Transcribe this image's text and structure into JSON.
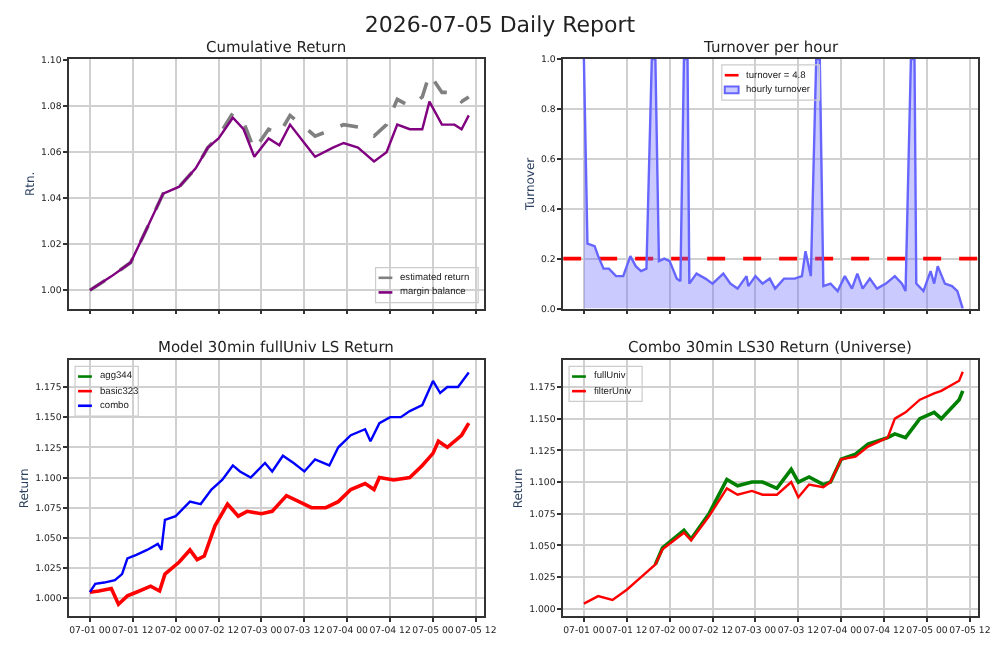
{
  "chart_data": [
    {
      "type": "other",
      "title": "2026-07-05 Daily Report"
    },
    {
      "type": "line",
      "title": "Cumulative Return",
      "ylabel": "Rtn.",
      "xlim": [
        "2026-06-30T18:12",
        "2026-07-05T14:18"
      ],
      "ylim": [
        0.992,
        1.1005
      ],
      "xticks": [
        {
          "value": "2026-07-01T00:00",
          "label": null
        },
        {
          "value": "2026-07-01T12:00",
          "label": null
        },
        {
          "value": "2026-07-02T00:00",
          "label": null
        },
        {
          "value": "2026-07-02T12:00",
          "label": null
        },
        {
          "value": "2026-07-03T00:00",
          "label": null
        },
        {
          "value": "2026-07-03T12:00",
          "label": null
        },
        {
          "value": "2026-07-04T00:00",
          "label": null
        },
        {
          "value": "2026-07-04T12:00",
          "label": null
        },
        {
          "value": "2026-07-05T00:00",
          "label": null
        },
        {
          "value": "2026-07-05T12:00",
          "label": null
        }
      ],
      "yticks": [
        {
          "value": 1.0,
          "label": "1.00"
        },
        1.02,
        1.04,
        1.06,
        1.08,
        {
          "value": 1.1,
          "label": "1.10"
        }
      ],
      "tick_labels": "y",
      "grid": true,
      "legend": "bottom right",
      "marker": "none",
      "series": [
        {
          "name": "estimated return",
          "color": "#808080",
          "line_style": "dashed",
          "x": [
            "2026-07-01T00:00",
            "2026-07-01T06:00",
            "2026-07-01T11:24",
            "2026-07-01T16:00",
            "2026-07-01T20:30",
            "2026-07-02T01:00",
            "2026-07-02T05:36",
            "2026-07-02T09:00",
            "2026-07-02T12:00",
            "2026-07-02T16:00",
            "2026-07-02T19:00",
            "2026-07-02T22:00",
            "2026-07-03T02:00",
            "2026-07-03T05:00",
            "2026-07-03T08:00",
            "2026-07-03T12:00",
            "2026-07-03T15:00",
            "2026-07-03T20:00",
            "2026-07-03T23:00",
            "2026-07-04T03:00",
            "2026-07-04T07:30",
            "2026-07-04T11:00",
            "2026-07-04T14:00",
            "2026-07-04T17:30",
            "2026-07-04T21:00",
            "2026-07-04T23:00",
            "2026-07-05T02:30",
            "2026-07-05T06:00",
            "2026-07-05T08:00",
            "2026-07-05T10:00"
          ],
          "values": [
            1.0,
            1.006,
            1.012,
            1.027,
            1.042,
            1.045,
            1.053,
            1.062,
            1.067,
            1.077,
            1.073,
            1.061,
            1.07,
            1.068,
            1.076,
            1.071,
            1.067,
            1.07,
            1.072,
            1.071,
            1.067,
            1.072,
            1.083,
            1.08,
            1.084,
            1.094,
            1.086,
            1.086,
            1.082,
            1.084
          ]
        },
        {
          "name": "margin balance",
          "color": "#800080",
          "line_style": "solid",
          "x": [
            "2026-07-01T00:00",
            "2026-07-01T06:00",
            "2026-07-01T11:24",
            "2026-07-01T16:00",
            "2026-07-01T20:30",
            "2026-07-02T01:00",
            "2026-07-02T05:36",
            "2026-07-02T09:00",
            "2026-07-02T12:00",
            "2026-07-02T16:00",
            "2026-07-02T19:00",
            "2026-07-02T22:00",
            "2026-07-03T02:00",
            "2026-07-03T05:00",
            "2026-07-03T08:00",
            "2026-07-03T12:00",
            "2026-07-03T15:00",
            "2026-07-03T20:00",
            "2026-07-03T23:00",
            "2026-07-04T03:00",
            "2026-07-04T07:30",
            "2026-07-04T11:00",
            "2026-07-04T14:00",
            "2026-07-04T17:30",
            "2026-07-04T21:00",
            "2026-07-04T23:00",
            "2026-07-05T02:30",
            "2026-07-05T06:00",
            "2026-07-05T08:00",
            "2026-07-05T10:00"
          ],
          "values": [
            1.0,
            1.006,
            1.012,
            1.027,
            1.042,
            1.045,
            1.053,
            1.062,
            1.066,
            1.075,
            1.07,
            1.058,
            1.066,
            1.063,
            1.072,
            1.064,
            1.058,
            1.062,
            1.064,
            1.062,
            1.056,
            1.06,
            1.072,
            1.07,
            1.07,
            1.082,
            1.072,
            1.072,
            1.07,
            1.076
          ]
        }
      ]
    },
    {
      "type": "area",
      "title": "Turnover per hour",
      "ylabel": "Turnover",
      "xlim": [
        "2026-06-30T18:12",
        "2026-07-05T14:18"
      ],
      "ylim": [
        0,
        1.0
      ],
      "xticks": [
        {
          "value": "2026-07-01T00:00",
          "label": null
        },
        {
          "value": "2026-07-01T12:00",
          "label": null
        },
        {
          "value": "2026-07-02T00:00",
          "label": null
        },
        {
          "value": "2026-07-02T12:00",
          "label": null
        },
        {
          "value": "2026-07-03T00:00",
          "label": null
        },
        {
          "value": "2026-07-03T12:00",
          "label": null
        },
        {
          "value": "2026-07-04T00:00",
          "label": null
        },
        {
          "value": "2026-07-04T12:00",
          "label": null
        },
        {
          "value": "2026-07-05T00:00",
          "label": null
        },
        {
          "value": "2026-07-05T12:00",
          "label": null
        }
      ],
      "yticks": [
        {
          "value": 0,
          "label": "0.0"
        },
        0.2,
        0.4,
        0.6,
        0.8,
        {
          "value": 1.0,
          "label": "1.0"
        }
      ],
      "tick_labels": "y",
      "grid": true,
      "legend": "top",
      "series": [
        {
          "name": "turnover = 4.8",
          "type": "line",
          "color": "#ff0000",
          "line_style": "dashed",
          "x": [
            "2026-06-30T18:12",
            "2026-07-05T14:18"
          ],
          "values": [
            0.2,
            0.2
          ]
        },
        {
          "name": "hourly turnover",
          "color": "#6666ff",
          "x": [
            "2026-07-01T00:00",
            "2026-07-01T01:00",
            "2026-07-01T03:00",
            "2026-07-01T04:00",
            "2026-07-01T05:30",
            "2026-07-01T07:00",
            "2026-07-01T09:00",
            "2026-07-01T11:00",
            "2026-07-01T13:00",
            "2026-07-01T14:30",
            "2026-07-01T16:00",
            "2026-07-01T17:30",
            "2026-07-01T19:00",
            "2026-07-01T20:00",
            "2026-07-01T21:00",
            "2026-07-01T22:30",
            "2026-07-02T00:00",
            "2026-07-02T02:00",
            "2026-07-02T03:00",
            "2026-07-02T04:00",
            "2026-07-02T05:00",
            "2026-07-02T05:30",
            "2026-07-02T07:30",
            "2026-07-02T10:00",
            "2026-07-02T12:00",
            "2026-07-02T15:00",
            "2026-07-02T17:00",
            "2026-07-02T19:00",
            "2026-07-02T21:30",
            "2026-07-02T22:00",
            "2026-07-03T00:00",
            "2026-07-03T02:00",
            "2026-07-03T04:00",
            "2026-07-03T05:30",
            "2026-07-03T08:00",
            "2026-07-03T11:00",
            "2026-07-03T13:00",
            "2026-07-03T14:00",
            "2026-07-03T15:30",
            "2026-07-03T17:00",
            "2026-07-03T18:00",
            "2026-07-03T19:00",
            "2026-07-03T21:00",
            "2026-07-03T23:00",
            "2026-07-04T01:00",
            "2026-07-04T03:00",
            "2026-07-04T04:30",
            "2026-07-04T06:00",
            "2026-07-04T08:00",
            "2026-07-04T10:00",
            "2026-07-04T12:30",
            "2026-07-04T15:00",
            "2026-07-04T17:00",
            "2026-07-04T18:00",
            "2026-07-04T19:30",
            "2026-07-04T20:30",
            "2026-07-04T21:00",
            "2026-07-04T23:00",
            "2026-07-05T01:00",
            "2026-07-05T02:00",
            "2026-07-05T03:00",
            "2026-07-05T05:00",
            "2026-07-05T07:00",
            "2026-07-05T08:30",
            "2026-07-05T10:00"
          ],
          "values": [
            1.0,
            0.26,
            0.25,
            0.21,
            0.16,
            0.16,
            0.13,
            0.13,
            0.21,
            0.17,
            0.15,
            0.16,
            1.0,
            1.0,
            0.19,
            0.2,
            0.19,
            0.12,
            0.11,
            1.0,
            1.0,
            0.1,
            0.14,
            0.12,
            0.1,
            0.14,
            0.1,
            0.08,
            0.13,
            0.09,
            0.13,
            0.1,
            0.12,
            0.08,
            0.12,
            0.12,
            0.13,
            0.23,
            0.13,
            1.0,
            1.0,
            0.09,
            0.1,
            0.07,
            0.13,
            0.08,
            0.14,
            0.08,
            0.12,
            0.08,
            0.1,
            0.13,
            0.1,
            0.07,
            1.0,
            1.0,
            0.1,
            0.07,
            0.15,
            0.1,
            0.17,
            0.1,
            0.09,
            0.07,
            0.0
          ]
        }
      ]
    },
    {
      "type": "line",
      "title": "Model 30min fullUniv LS Return",
      "ylabel": "Return",
      "xlim": [
        "2026-06-30T18:12",
        "2026-07-05T14:18"
      ],
      "ylim": [
        0.985,
        1.197
      ],
      "xticks": [
        {
          "value": "2026-07-01T00:00",
          "label": "07-01 00"
        },
        {
          "value": "2026-07-01T12:00",
          "label": "07-01 12"
        },
        {
          "value": "2026-07-02T00:00",
          "label": "07-02 00"
        },
        {
          "value": "2026-07-02T12:00",
          "label": "07-02 12"
        },
        {
          "value": "2026-07-03T00:00",
          "label": "07-03 00"
        },
        {
          "value": "2026-07-03T12:00",
          "label": "07-03 12"
        },
        {
          "value": "2026-07-04T00:00",
          "label": "07-04 00"
        },
        {
          "value": "2026-07-04T12:00",
          "label": "07-04 12"
        },
        {
          "value": "2026-07-05T00:00",
          "label": "07-05 00"
        },
        {
          "value": "2026-07-05T12:00",
          "label": "07-05 12"
        }
      ],
      "yticks": [
        {
          "value": 1.0,
          "label": "1.000"
        },
        1.025,
        {
          "value": 1.05,
          "label": "1.050"
        },
        1.075,
        {
          "value": 1.1,
          "label": "1.100"
        },
        1.125,
        {
          "value": 1.15,
          "label": "1.150"
        },
        1.175
      ],
      "grid": true,
      "legend": "top left",
      "marker": "none",
      "series": [
        {
          "name": "agg344",
          "color": "#008000"
        },
        {
          "name": "basic323",
          "color": "#ff0000",
          "x": [
            "2026-07-01T00:00",
            "2026-07-01T02:30",
            "2026-07-01T06:00",
            "2026-07-01T08:00",
            "2026-07-01T10:30",
            "2026-07-01T13:00",
            "2026-07-01T17:00",
            "2026-07-01T19:30",
            "2026-07-01T21:00",
            "2026-07-02T01:00",
            "2026-07-02T04:00",
            "2026-07-02T06:00",
            "2026-07-02T08:00",
            "2026-07-02T11:00",
            "2026-07-02T14:30",
            "2026-07-02T17:30",
            "2026-07-02T20:00",
            "2026-07-03T00:00",
            "2026-07-03T03:00",
            "2026-07-03T07:00",
            "2026-07-03T10:30",
            "2026-07-03T14:00",
            "2026-07-03T18:00",
            "2026-07-03T21:30",
            "2026-07-04T01:00",
            "2026-07-04T05:00",
            "2026-07-04T07:30",
            "2026-07-04T09:00",
            "2026-07-04T13:00",
            "2026-07-04T17:30",
            "2026-07-04T21:00",
            "2026-07-05T00:00",
            "2026-07-05T01:30",
            "2026-07-05T04:00",
            "2026-07-05T08:00",
            "2026-07-05T10:00"
          ],
          "values": [
            1.005,
            1.006,
            1.008,
            0.995,
            1.002,
            1.005,
            1.01,
            1.006,
            1.02,
            1.03,
            1.04,
            1.032,
            1.035,
            1.06,
            1.078,
            1.068,
            1.072,
            1.07,
            1.072,
            1.085,
            1.08,
            1.075,
            1.075,
            1.08,
            1.09,
            1.095,
            1.09,
            1.1,
            1.098,
            1.1,
            1.11,
            1.12,
            1.13,
            1.125,
            1.135,
            1.145
          ]
        },
        {
          "name": "combo",
          "color": "#0000ff",
          "x": [
            "2026-07-01T00:00",
            "2026-07-01T01:30",
            "2026-07-01T04:00",
            "2026-07-01T07:00",
            "2026-07-01T09:00",
            "2026-07-01T10:30",
            "2026-07-01T13:00",
            "2026-07-01T16:00",
            "2026-07-01T19:00",
            "2026-07-01T20:00",
            "2026-07-01T21:00",
            "2026-07-02T00:00",
            "2026-07-02T04:00",
            "2026-07-02T07:00",
            "2026-07-02T10:00",
            "2026-07-02T13:00",
            "2026-07-02T16:00",
            "2026-07-02T18:00",
            "2026-07-02T21:00",
            "2026-07-03T01:00",
            "2026-07-03T03:00",
            "2026-07-03T06:00",
            "2026-07-03T09:00",
            "2026-07-03T12:00",
            "2026-07-03T15:00",
            "2026-07-03T19:00",
            "2026-07-03T21:30",
            "2026-07-04T01:00",
            "2026-07-04T05:00",
            "2026-07-04T06:30",
            "2026-07-04T09:00",
            "2026-07-04T12:00",
            "2026-07-04T15:00",
            "2026-07-04T17:30",
            "2026-07-04T21:00",
            "2026-07-05T00:00",
            "2026-07-05T02:00",
            "2026-07-05T04:00",
            "2026-07-05T07:00",
            "2026-07-05T10:00"
          ],
          "values": [
            1.005,
            1.012,
            1.013,
            1.015,
            1.02,
            1.033,
            1.036,
            1.04,
            1.045,
            1.04,
            1.065,
            1.068,
            1.08,
            1.078,
            1.09,
            1.098,
            1.11,
            1.105,
            1.1,
            1.112,
            1.105,
            1.118,
            1.112,
            1.105,
            1.115,
            1.11,
            1.125,
            1.135,
            1.14,
            1.13,
            1.145,
            1.15,
            1.15,
            1.155,
            1.16,
            1.18,
            1.17,
            1.175,
            1.175,
            1.187
          ]
        }
      ]
    },
    {
      "type": "line",
      "title": "Combo 30min LS30 Return (Universe)",
      "ylabel": "Return",
      "xlim": [
        "2026-06-30T18:12",
        "2026-07-05T14:18"
      ],
      "ylim": [
        0.994,
        1.196
      ],
      "xticks": [
        {
          "value": "2026-07-01T00:00",
          "label": "07-01 00"
        },
        {
          "value": "2026-07-01T12:00",
          "label": "07-01 12"
        },
        {
          "value": "2026-07-02T00:00",
          "label": "07-02 00"
        },
        {
          "value": "2026-07-02T12:00",
          "label": "07-02 12"
        },
        {
          "value": "2026-07-03T00:00",
          "label": "07-03 00"
        },
        {
          "value": "2026-07-03T12:00",
          "label": "07-03 12"
        },
        {
          "value": "2026-07-04T00:00",
          "label": "07-04 00"
        },
        {
          "value": "2026-07-04T12:00",
          "label": "07-04 12"
        },
        {
          "value": "2026-07-05T00:00",
          "label": "07-05 00"
        },
        {
          "value": "2026-07-05T12:00",
          "label": "07-05 12"
        }
      ],
      "yticks": [
        {
          "value": 1.0,
          "label": "1.000"
        },
        1.025,
        {
          "value": 1.05,
          "label": "1.050"
        },
        1.075,
        {
          "value": 1.1,
          "label": "1.100"
        },
        1.125,
        {
          "value": 1.15,
          "label": "1.150"
        },
        1.175
      ],
      "grid": true,
      "legend": "top left",
      "marker": "none",
      "series": [
        {
          "name": "fullUniv",
          "color": "#008000",
          "x": [
            "2026-07-01T20:00",
            "2026-07-01T22:00",
            "2026-07-02T04:00",
            "2026-07-02T06:00",
            "2026-07-02T11:00",
            "2026-07-02T16:00",
            "2026-07-02T19:00",
            "2026-07-02T23:00",
            "2026-07-03T02:00",
            "2026-07-03T06:00",
            "2026-07-03T10:00",
            "2026-07-03T12:00",
            "2026-07-03T15:00",
            "2026-07-03T19:00",
            "2026-07-03T21:00",
            "2026-07-04T00:00",
            "2026-07-04T04:00",
            "2026-07-04T07:30",
            "2026-07-04T13:00",
            "2026-07-04T15:00",
            "2026-07-04T18:00",
            "2026-07-04T22:00",
            "2026-07-05T02:00",
            "2026-07-05T04:00",
            "2026-07-05T09:00",
            "2026-07-05T10:00"
          ],
          "values": [
            1.035,
            1.048,
            1.062,
            1.055,
            1.075,
            1.102,
            1.097,
            1.1,
            1.1,
            1.095,
            1.11,
            1.1,
            1.104,
            1.098,
            1.1,
            1.118,
            1.122,
            1.13,
            1.135,
            1.138,
            1.135,
            1.15,
            1.155,
            1.15,
            1.165,
            1.172
          ]
        },
        {
          "name": "filterUniv",
          "color": "#ff0000",
          "x": [
            "2026-07-01T00:00",
            "2026-07-01T04:00",
            "2026-07-01T08:00",
            "2026-07-01T12:00",
            "2026-07-01T16:00",
            "2026-07-01T20:00",
            "2026-07-01T22:00",
            "2026-07-02T04:00",
            "2026-07-02T06:00",
            "2026-07-02T11:00",
            "2026-07-02T16:00",
            "2026-07-02T19:00",
            "2026-07-02T23:00",
            "2026-07-03T02:00",
            "2026-07-03T06:00",
            "2026-07-03T10:00",
            "2026-07-03T12:00",
            "2026-07-03T15:00",
            "2026-07-03T19:00",
            "2026-07-03T21:00",
            "2026-07-04T00:00",
            "2026-07-04T04:00",
            "2026-07-04T07:30",
            "2026-07-04T13:00",
            "2026-07-04T15:00",
            "2026-07-04T18:00",
            "2026-07-04T22:00",
            "2026-07-05T02:00",
            "2026-07-05T04:00",
            "2026-07-05T09:00",
            "2026-07-05T10:00"
          ],
          "values": [
            1.004,
            1.01,
            1.007,
            1.015,
            1.025,
            1.035,
            1.047,
            1.06,
            1.054,
            1.073,
            1.095,
            1.09,
            1.093,
            1.09,
            1.09,
            1.1,
            1.088,
            1.098,
            1.096,
            1.1,
            1.118,
            1.12,
            1.128,
            1.135,
            1.15,
            1.155,
            1.165,
            1.17,
            1.172,
            1.18,
            1.187
          ]
        }
      ]
    }
  ]
}
